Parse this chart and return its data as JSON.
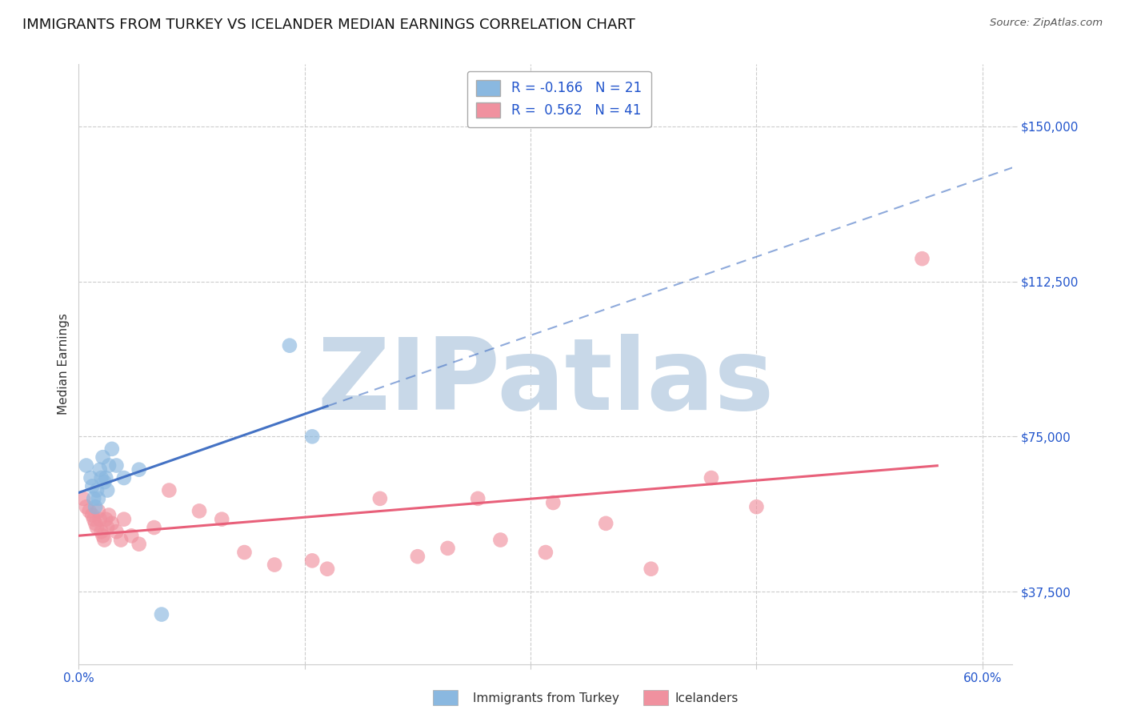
{
  "title": "IMMIGRANTS FROM TURKEY VS ICELANDER MEDIAN EARNINGS CORRELATION CHART",
  "source": "Source: ZipAtlas.com",
  "ylabel": "Median Earnings",
  "xlim": [
    0.0,
    0.62
  ],
  "ylim": [
    20000,
    165000
  ],
  "yticks": [
    37500,
    75000,
    112500,
    150000
  ],
  "ytick_labels": [
    "$37,500",
    "$75,000",
    "$112,500",
    "$150,000"
  ],
  "xticks": [
    0.0,
    0.15,
    0.3,
    0.45,
    0.6
  ],
  "xtick_labels": [
    "0.0%",
    "",
    "",
    "",
    "60.0%"
  ],
  "legend_labels": [
    "Immigrants from Turkey",
    "Icelanders"
  ],
  "legend_R": [
    -0.166,
    0.562
  ],
  "legend_N": [
    21,
    41
  ],
  "blue_color": "#8ab8e0",
  "pink_color": "#f0919f",
  "blue_line_color": "#4472c4",
  "pink_line_color": "#e8607a",
  "watermark": "ZIPatlas",
  "watermark_color": "#c8d8e8",
  "blue_dots_x": [
    0.005,
    0.008,
    0.009,
    0.01,
    0.011,
    0.012,
    0.013,
    0.014,
    0.015,
    0.016,
    0.017,
    0.018,
    0.019,
    0.02,
    0.022,
    0.025,
    0.03,
    0.04,
    0.055,
    0.14,
    0.155
  ],
  "blue_dots_y": [
    68000,
    65000,
    63000,
    60000,
    58000,
    62000,
    60000,
    67000,
    65000,
    70000,
    64000,
    65000,
    62000,
    68000,
    72000,
    68000,
    65000,
    67000,
    32000,
    97000,
    75000
  ],
  "pink_dots_x": [
    0.003,
    0.005,
    0.007,
    0.009,
    0.01,
    0.011,
    0.012,
    0.013,
    0.014,
    0.015,
    0.016,
    0.017,
    0.018,
    0.019,
    0.02,
    0.022,
    0.025,
    0.028,
    0.03,
    0.035,
    0.04,
    0.05,
    0.06,
    0.08,
    0.095,
    0.11,
    0.13,
    0.155,
    0.165,
    0.2,
    0.225,
    0.245,
    0.265,
    0.28,
    0.31,
    0.315,
    0.35,
    0.38,
    0.42,
    0.45,
    0.56
  ],
  "pink_dots_y": [
    60000,
    58000,
    57000,
    56000,
    55000,
    54000,
    53000,
    57000,
    55000,
    52000,
    51000,
    50000,
    55000,
    53000,
    56000,
    54000,
    52000,
    50000,
    55000,
    51000,
    49000,
    53000,
    62000,
    57000,
    55000,
    47000,
    44000,
    45000,
    43000,
    60000,
    46000,
    48000,
    60000,
    50000,
    47000,
    59000,
    54000,
    43000,
    65000,
    58000,
    118000
  ],
  "grid_color": "#cccccc",
  "background_color": "#ffffff",
  "title_fontsize": 13,
  "axis_label_fontsize": 11,
  "tick_fontsize": 11,
  "legend_fontsize": 12
}
